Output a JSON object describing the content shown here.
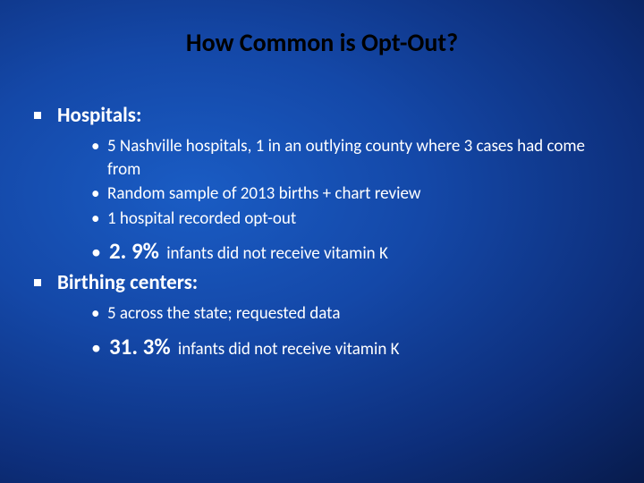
{
  "title": "How Common is Opt-Out?",
  "hospitals": {
    "heading": "Hospitals:",
    "items": [
      "5 Nashville hospitals, 1 in an outlying county where 3 cases had come from",
      "Random sample of 2013 births + chart review",
      "1 hospital recorded opt-out"
    ],
    "pct": "2. 9%",
    "pct_after": " infants did not receive vitamin K"
  },
  "centers": {
    "heading": "Birthing centers:",
    "items": [
      "5 across the state; requested data"
    ],
    "pct": "31. 3%",
    "pct_after": " infants did not receive vitamin K"
  },
  "colors": {
    "title_color": "#000000",
    "text_color": "#ffffff"
  }
}
